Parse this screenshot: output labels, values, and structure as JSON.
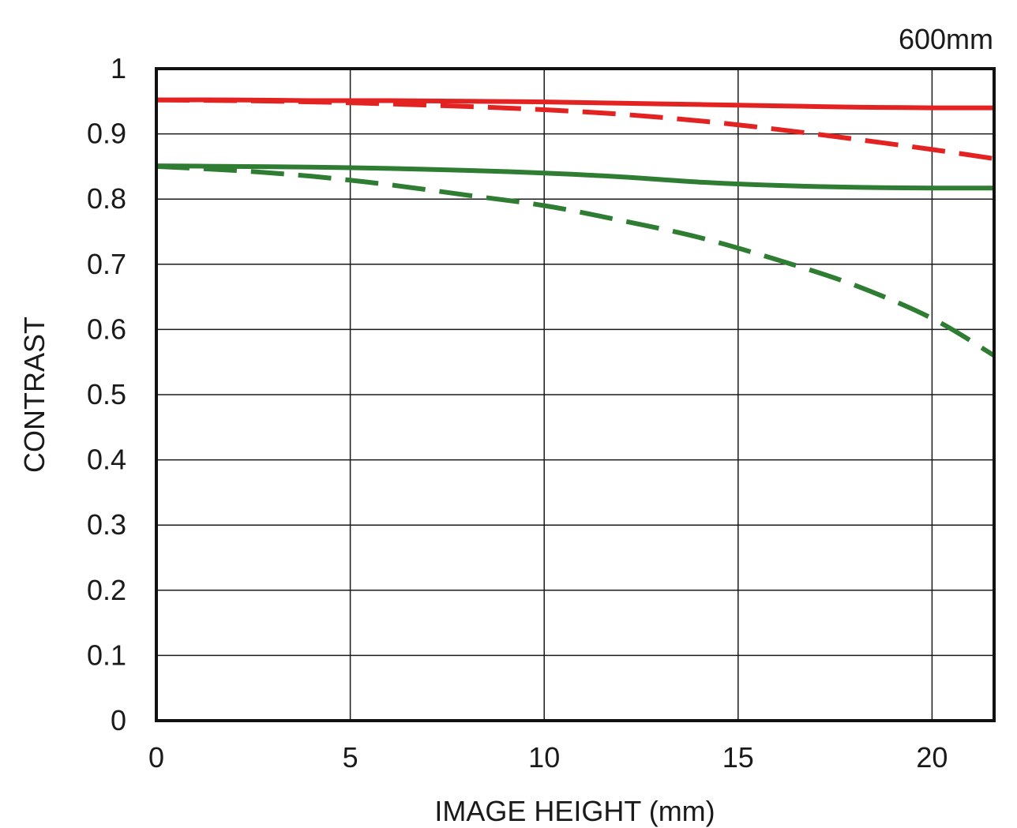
{
  "chart_data": {
    "type": "line",
    "title": "600mm",
    "xlabel": "IMAGE HEIGHT (mm)",
    "ylabel": "CONTRAST",
    "xlim": [
      0,
      21.6
    ],
    "ylim": [
      0,
      1
    ],
    "xticks": [
      0,
      5,
      10,
      15,
      20
    ],
    "xtick_labels": [
      "0",
      "5",
      "10",
      "15",
      "20"
    ],
    "yticks": [
      0,
      0.1,
      0.2,
      0.3,
      0.4,
      0.5,
      0.6,
      0.7,
      0.8,
      0.9,
      1
    ],
    "ytick_labels": [
      "0",
      "0.1",
      "0.2",
      "0.3",
      "0.4",
      "0.5",
      "0.6",
      "0.7",
      "0.8",
      "0.9",
      "1"
    ],
    "grid": true,
    "series": [
      {
        "color": "#e32222",
        "style": "solid",
        "x": [
          0,
          2,
          4,
          6,
          8,
          10,
          12,
          14,
          16,
          18,
          20,
          21.6
        ],
        "y": [
          0.952,
          0.952,
          0.951,
          0.951,
          0.95,
          0.949,
          0.947,
          0.945,
          0.943,
          0.941,
          0.94,
          0.94
        ]
      },
      {
        "color": "#e32222",
        "style": "dashed",
        "x": [
          0,
          2,
          4,
          6,
          8,
          10,
          12,
          14,
          16,
          18,
          20,
          21.6
        ],
        "y": [
          0.952,
          0.951,
          0.949,
          0.946,
          0.942,
          0.937,
          0.93,
          0.92,
          0.907,
          0.892,
          0.876,
          0.862
        ]
      },
      {
        "color": "#2e7d32",
        "style": "solid",
        "x": [
          0,
          2,
          4,
          6,
          8,
          10,
          12,
          14,
          16,
          18,
          20,
          21.6
        ],
        "y": [
          0.851,
          0.85,
          0.849,
          0.847,
          0.844,
          0.84,
          0.834,
          0.826,
          0.821,
          0.818,
          0.817,
          0.817
        ]
      },
      {
        "color": "#2e7d32",
        "style": "dashed",
        "x": [
          0,
          2,
          4,
          6,
          8,
          10,
          12,
          14,
          16,
          18,
          20,
          21.6
        ],
        "y": [
          0.85,
          0.844,
          0.835,
          0.822,
          0.806,
          0.79,
          0.767,
          0.741,
          0.707,
          0.668,
          0.617,
          0.56
        ]
      }
    ]
  }
}
